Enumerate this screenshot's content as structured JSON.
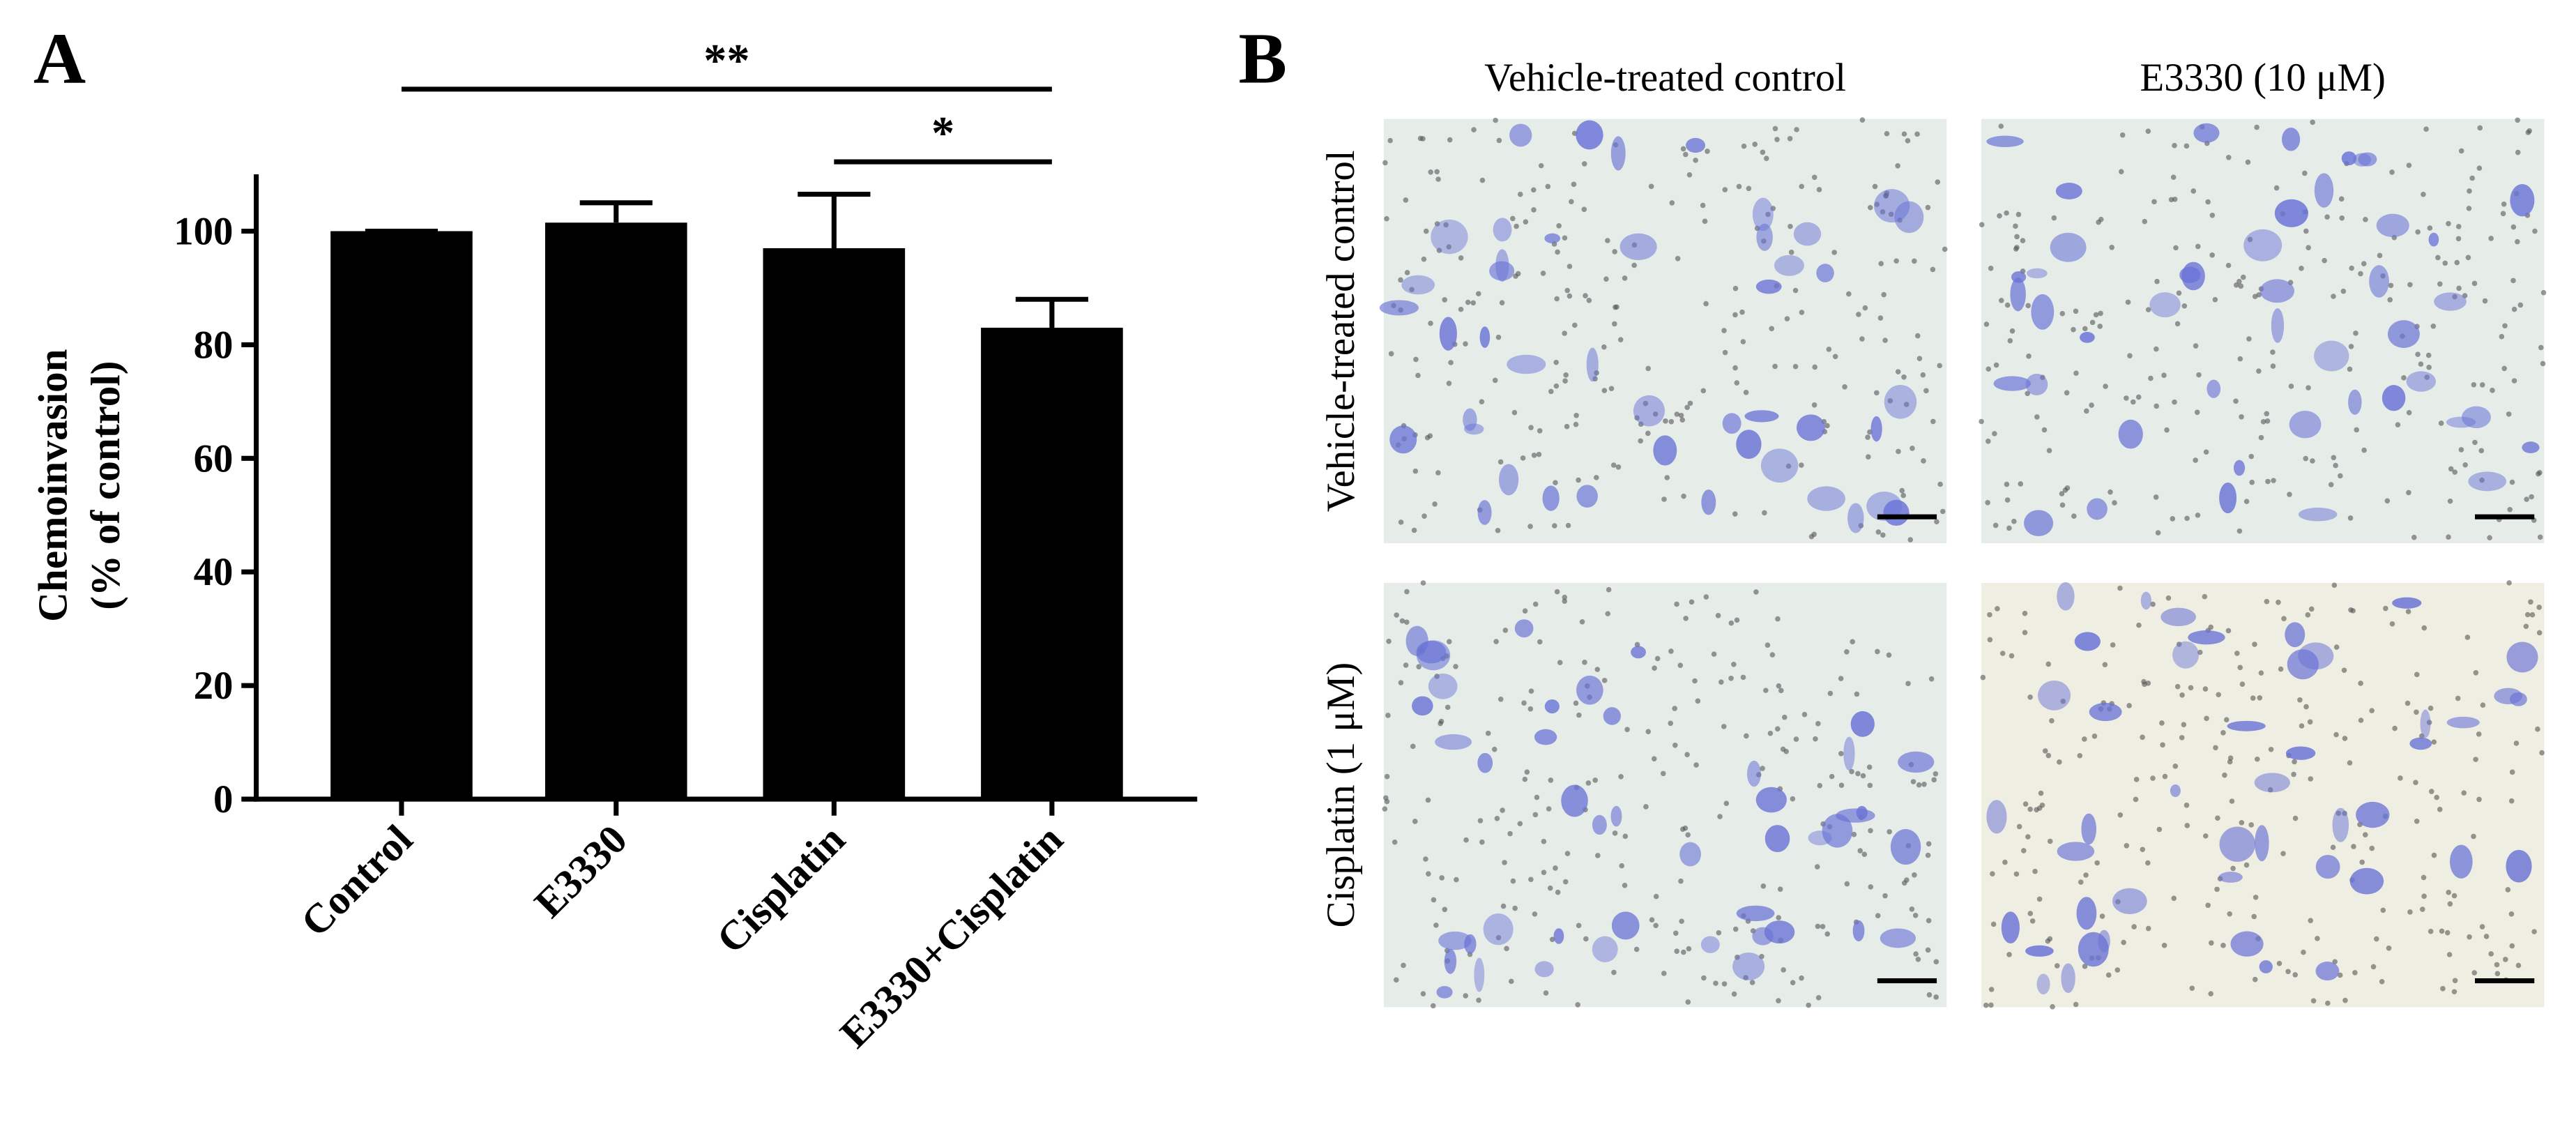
{
  "chart_data": {
    "type": "bar",
    "panel_label": "A",
    "ylabel": [
      "Chemoinvasion",
      "(% of control)"
    ],
    "categories": [
      "Control",
      "E3330",
      "Cisplatin",
      "E3330+Cisplatin"
    ],
    "values": [
      100,
      101.5,
      97,
      83
    ],
    "errors": [
      0,
      3.5,
      9.5,
      5
    ],
    "color": "#000000",
    "ylim": [
      0,
      110
    ],
    "yticks": [
      0,
      20,
      40,
      60,
      80,
      100
    ],
    "significance": [
      {
        "label": "**",
        "between": [
          "Control",
          "E3330+Cisplatin"
        ]
      },
      {
        "label": "*",
        "between": [
          "Cisplatin",
          "E3330+Cisplatin"
        ]
      }
    ]
  },
  "micrographs": {
    "panel_label": "B",
    "columns": [
      "Vehicle-treated control",
      "E3330 (10 μM)"
    ],
    "rows": [
      "Vehicle-treated control",
      "Cisplatin (1 μM)"
    ]
  }
}
